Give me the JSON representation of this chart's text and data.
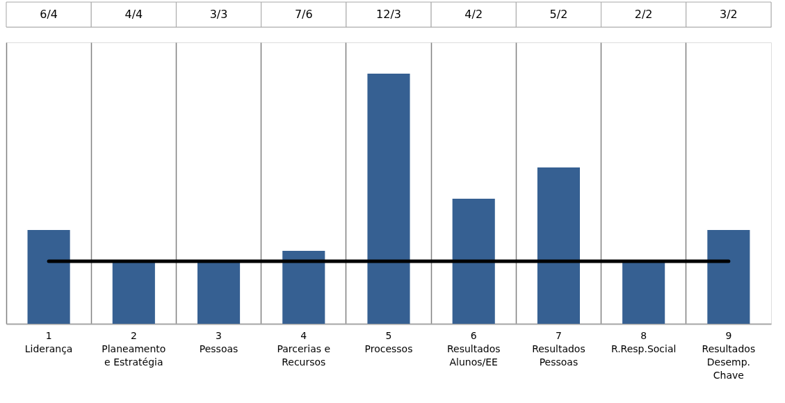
{
  "chart_data": {
    "type": "bar",
    "categories": [
      "1\nLiderança",
      "2\nPlaneamento\ne Estratégia",
      "3\nPessoas",
      "4\nParcerias e\nRecursos",
      "5\nProcessos",
      "6\nResultados\nAlunos/EE",
      "7\nResultados\nPessoas",
      "8\nR.Resp.Social",
      "9\nResultados\nDesemp.\nChave"
    ],
    "values": [
      1.5,
      1,
      1,
      1.1667,
      4,
      2,
      2.5,
      1,
      1.5
    ],
    "value_labels": [
      "6/4",
      "4/4",
      "3/3",
      "7/6",
      "12/3",
      "4/2",
      "5/2",
      "2/2",
      "3/2"
    ],
    "color": "#366092",
    "ref_lines": [
      {
        "axis": "y",
        "value": 1,
        "color": "#000000"
      }
    ],
    "grid": "x",
    "tick_labels": "x"
  }
}
